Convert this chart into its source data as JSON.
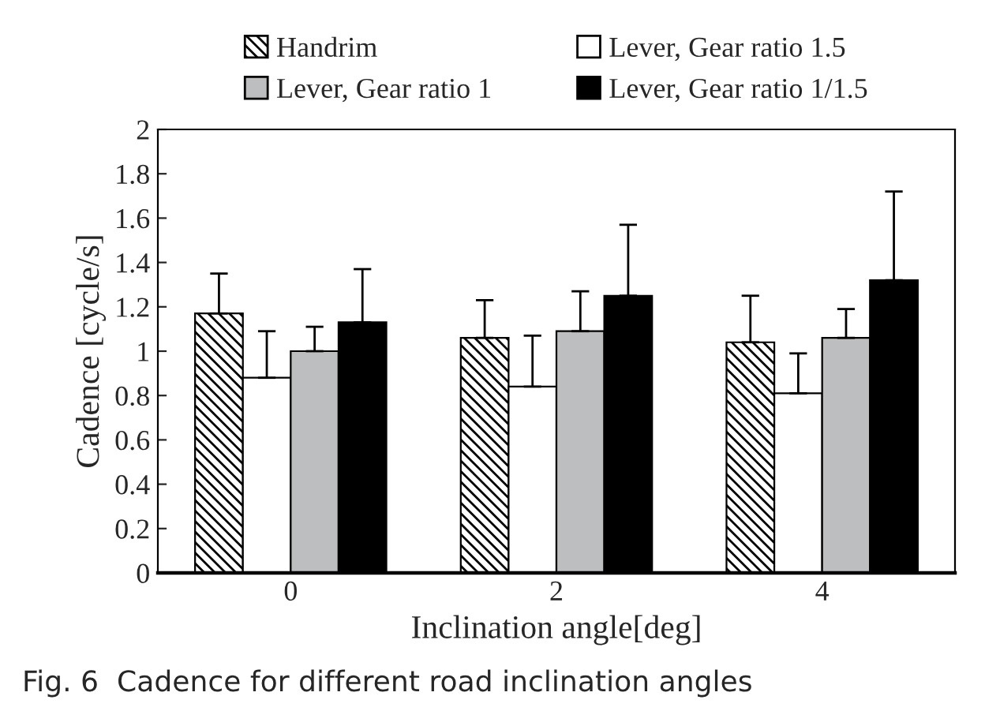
{
  "chart_data": {
    "type": "bar",
    "xlabel": "Inclination angle[deg]",
    "ylabel": "Cadence [cycle/s]",
    "categories": [
      "0",
      "2",
      "4"
    ],
    "series": [
      {
        "name": "Handrim",
        "color": "#000000",
        "values": [
          1.17,
          1.06,
          1.04
        ],
        "errors": [
          [
            1.17,
            1.35
          ],
          [
            1.06,
            1.23
          ],
          [
            1.04,
            1.25
          ]
        ]
      },
      {
        "name": "Lever, Gear ratio 1.5",
        "color": "#ffffff",
        "values": [
          0.88,
          0.84,
          0.81
        ],
        "errors": [
          [
            0.88,
            1.09
          ],
          [
            0.84,
            1.07
          ],
          [
            0.81,
            0.99
          ]
        ]
      },
      {
        "name": "Lever, Gear ratio 1",
        "color": "#bcbec0",
        "values": [
          1.0,
          1.09,
          1.06
        ],
        "errors": [
          [
            1.0,
            1.11
          ],
          [
            1.09,
            1.27
          ],
          [
            1.06,
            1.19
          ]
        ]
      },
      {
        "name": "Lever, Gear ratio 1/1.5",
        "color": "#000000",
        "values": [
          1.13,
          1.25,
          1.32
        ],
        "errors": [
          [
            1.13,
            1.37
          ],
          [
            1.25,
            1.57
          ],
          [
            1.32,
            1.72
          ]
        ]
      }
    ],
    "ylim": [
      0,
      2
    ],
    "yticks": [
      0,
      {
        "value": 0.2,
        "label": "0.2"
      },
      {
        "value": 0.4,
        "label": "0.4"
      },
      {
        "value": 0.6,
        "label": "0.6"
      },
      {
        "value": 0.8,
        "label": "0.8"
      },
      1,
      {
        "value": 1.2,
        "label": "1.2"
      },
      {
        "value": 1.4,
        "label": "1.4"
      },
      {
        "value": 1.6,
        "label": "1.6"
      },
      {
        "value": 1.8,
        "label": "1.8"
      },
      2
    ],
    "grid": false,
    "legend": "top",
    "annotations": [
      "Fig. 6  Cadence for different road inclination angles"
    ]
  }
}
